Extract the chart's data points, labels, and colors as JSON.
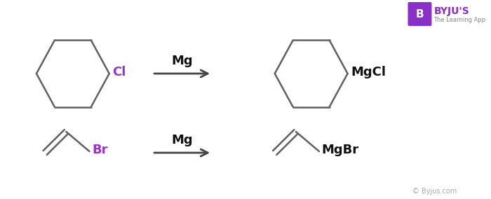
{
  "bg_color": "#ffffff",
  "bond_color": "#606060",
  "cl_color": "#9933cc",
  "br_color": "#9933cc",
  "mgcl_color": "#111111",
  "mgbr_color": "#111111",
  "mg_color": "#111111",
  "arrow_color": "#444444",
  "byju_box_color": "#8B2FC9",
  "byju_text": "BYJU'S",
  "byju_sub": "The Learning App",
  "copyright_text": "© Byjus.com",
  "mg_label": "Mg",
  "cl_label": "Cl",
  "br_label": "Br",
  "mgcl_label": "MgCl",
  "mgbr_label": "MgBr"
}
